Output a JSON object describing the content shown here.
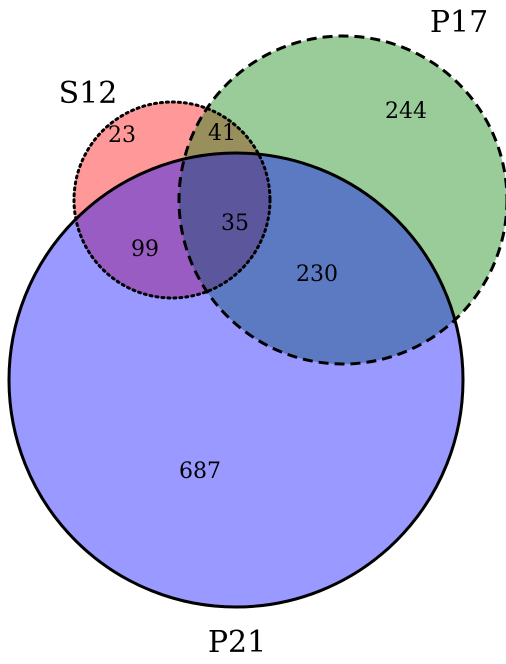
{
  "chart_data": {
    "type": "venn",
    "sets": [
      {
        "name": "S12",
        "color": "#ff0000",
        "linestyle": "dotted"
      },
      {
        "name": "P17",
        "color": "#008000",
        "linestyle": "dashed"
      },
      {
        "name": "P21",
        "color": "#0000ff",
        "linestyle": "solid"
      }
    ],
    "values": [
      23,
      41,
      244,
      99,
      35,
      230,
      687
    ],
    "alpha": 0.4
  }
}
